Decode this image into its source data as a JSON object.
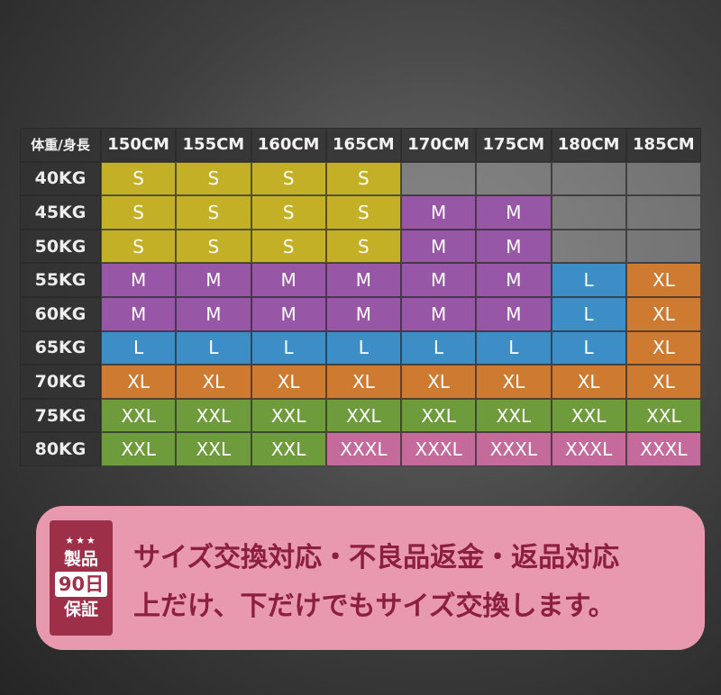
{
  "table": {
    "header": [
      "体重/身長",
      "150CM",
      "155CM",
      "160CM",
      "165CM",
      "170CM",
      "175CM",
      "180CM",
      "185CM"
    ],
    "rows": [
      {
        "label": "40KG",
        "cells": [
          "S",
          "S",
          "S",
          "S",
          null,
          null,
          null,
          null
        ]
      },
      {
        "label": "45KG",
        "cells": [
          "S",
          "S",
          "S",
          "S",
          "M",
          "M",
          null,
          null
        ]
      },
      {
        "label": "50KG",
        "cells": [
          "S",
          "S",
          "S",
          "S",
          "M",
          "M",
          null,
          null
        ]
      },
      {
        "label": "55KG",
        "cells": [
          "M",
          "M",
          "M",
          "M",
          "M",
          "M",
          "L",
          "XL"
        ]
      },
      {
        "label": "60KG",
        "cells": [
          "M",
          "M",
          "M",
          "M",
          "M",
          "M",
          "L",
          "XL"
        ]
      },
      {
        "label": "65KG",
        "cells": [
          "L",
          "L",
          "L",
          "L",
          "L",
          "L",
          "L",
          "XL"
        ]
      },
      {
        "label": "70KG",
        "cells": [
          "XL",
          "XL",
          "XL",
          "XL",
          "XL",
          "XL",
          "XL",
          "XL"
        ]
      },
      {
        "label": "75KG",
        "cells": [
          "XXL",
          "XXL",
          "XXL",
          "XXL",
          "XXL",
          "XXL",
          "XXL",
          "XXL"
        ]
      },
      {
        "label": "80KG",
        "cells": [
          "XXL",
          "XXL",
          "XXL",
          "XXXL",
          "XXXL",
          "XXXL",
          "XXXL",
          "XXXL"
        ]
      }
    ],
    "colors": {
      "S": "#c4b026",
      "M": "#9756a6",
      "L": "#3d8ec6",
      "XL": "#cf7a31",
      "XXL": "#6e9b3c",
      "XXXL": "#c46b9c"
    }
  },
  "banner": {
    "badge": {
      "stars": "★★★",
      "line1": "製品",
      "line2": "90日",
      "line3": "保証"
    },
    "line1": "サイズ交換対応・不良品返金・返品対応",
    "line2": "上だけ、下だけでもサイズ交換します。"
  }
}
